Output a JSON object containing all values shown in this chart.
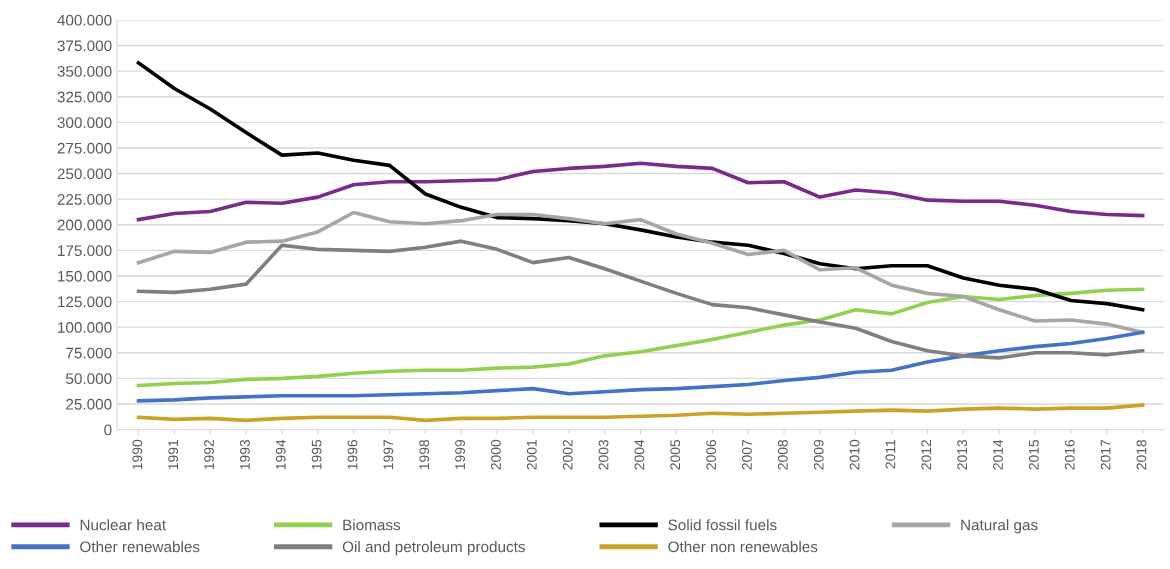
{
  "chart_data": {
    "type": "line",
    "categories": [
      "1990",
      "1991",
      "1992",
      "1993",
      "1994",
      "1995",
      "1996",
      "1997",
      "1998",
      "1999",
      "2000",
      "2001",
      "2002",
      "2003",
      "2004",
      "2005",
      "2006",
      "2007",
      "2008",
      "2009",
      "2010",
      "2011",
      "2012",
      "2013",
      "2014",
      "2015",
      "2016",
      "2017",
      "2018"
    ],
    "series": [
      {
        "name": "Nuclear heat",
        "color": "#7b2a8c",
        "values": [
          205000,
          211000,
          213000,
          222000,
          221000,
          227000,
          239000,
          242000,
          242000,
          243000,
          244000,
          252000,
          255000,
          257000,
          260000,
          257000,
          255000,
          241000,
          242000,
          227000,
          234000,
          231000,
          224000,
          223000,
          223000,
          219000,
          213000,
          210000,
          209000
        ]
      },
      {
        "name": "Biomass",
        "color": "#92d050",
        "values": [
          43000,
          45000,
          46000,
          49000,
          50000,
          52000,
          55000,
          57000,
          58000,
          58000,
          60000,
          61000,
          64000,
          72000,
          76000,
          82000,
          88000,
          95000,
          102000,
          107000,
          117000,
          113000,
          124000,
          130000,
          127000,
          131000,
          133000,
          136000,
          137000
        ]
      },
      {
        "name": "Solid fossil fuels",
        "color": "#000000",
        "values": [
          358000,
          333000,
          313000,
          290000,
          268000,
          270000,
          263000,
          258000,
          230000,
          217000,
          207000,
          206000,
          204000,
          201000,
          195000,
          188000,
          183000,
          180000,
          172000,
          162000,
          157000,
          160000,
          160000,
          148000,
          141000,
          137000,
          126000,
          123000,
          117000
        ]
      },
      {
        "name": "Natural gas",
        "color": "#a6a6a6",
        "values": [
          163000,
          174000,
          173000,
          183000,
          184000,
          193000,
          212000,
          203000,
          201000,
          204000,
          210000,
          210000,
          206000,
          201000,
          205000,
          191000,
          182000,
          171000,
          175000,
          156000,
          158000,
          141000,
          133000,
          130000,
          117000,
          106000,
          107000,
          103000,
          95000
        ]
      },
      {
        "name": "Other renewables",
        "color": "#4472c4",
        "values": [
          28000,
          29000,
          31000,
          32000,
          33000,
          33000,
          33000,
          34000,
          35000,
          36000,
          38000,
          40000,
          35000,
          37000,
          39000,
          40000,
          42000,
          44000,
          48000,
          51000,
          56000,
          58000,
          66000,
          72000,
          77000,
          81000,
          84000,
          89000,
          95000
        ]
      },
      {
        "name": "Oil and petroleum products",
        "color": "#7f7f7f",
        "values": [
          135000,
          134000,
          137000,
          142000,
          180000,
          176000,
          175000,
          174000,
          178000,
          184000,
          176000,
          163000,
          168000,
          157000,
          145000,
          133000,
          122000,
          119000,
          112000,
          105000,
          99000,
          86000,
          77000,
          72000,
          70000,
          75000,
          75000,
          73000,
          77000
        ]
      },
      {
        "name": "Other non renewables",
        "color": "#c9a227",
        "values": [
          12000,
          10000,
          11000,
          9000,
          11000,
          12000,
          12000,
          12000,
          9000,
          11000,
          11000,
          12000,
          12000,
          12000,
          13000,
          14000,
          16000,
          15000,
          16000,
          17000,
          18000,
          19000,
          18000,
          20000,
          21000,
          20000,
          21000,
          21000,
          24000
        ]
      }
    ],
    "ylim": [
      0,
      400000
    ],
    "yticks": [
      {
        "value": 0,
        "label": "0"
      },
      {
        "value": 25000,
        "label": "25.000"
      },
      {
        "value": 50000,
        "label": "50.000"
      },
      {
        "value": 75000,
        "label": "75.000"
      },
      {
        "value": 100000,
        "label": "100.000"
      },
      {
        "value": 125000,
        "label": "125.000"
      },
      {
        "value": 150000,
        "label": "150.000"
      },
      {
        "value": 175000,
        "label": "175.000"
      },
      {
        "value": 200000,
        "label": "200.000"
      },
      {
        "value": 225000,
        "label": "225.000"
      },
      {
        "value": 250000,
        "label": "250.000"
      },
      {
        "value": 275000,
        "label": "275.000"
      },
      {
        "value": 300000,
        "label": "300.000"
      },
      {
        "value": 325000,
        "label": "325.000"
      },
      {
        "value": 350000,
        "label": "350.000"
      },
      {
        "value": 375000,
        "label": "375.000"
      },
      {
        "value": 400000,
        "label": "400.000"
      }
    ],
    "grid": "y",
    "legend": "bottom",
    "marker": "none",
    "line_style": "solid"
  }
}
